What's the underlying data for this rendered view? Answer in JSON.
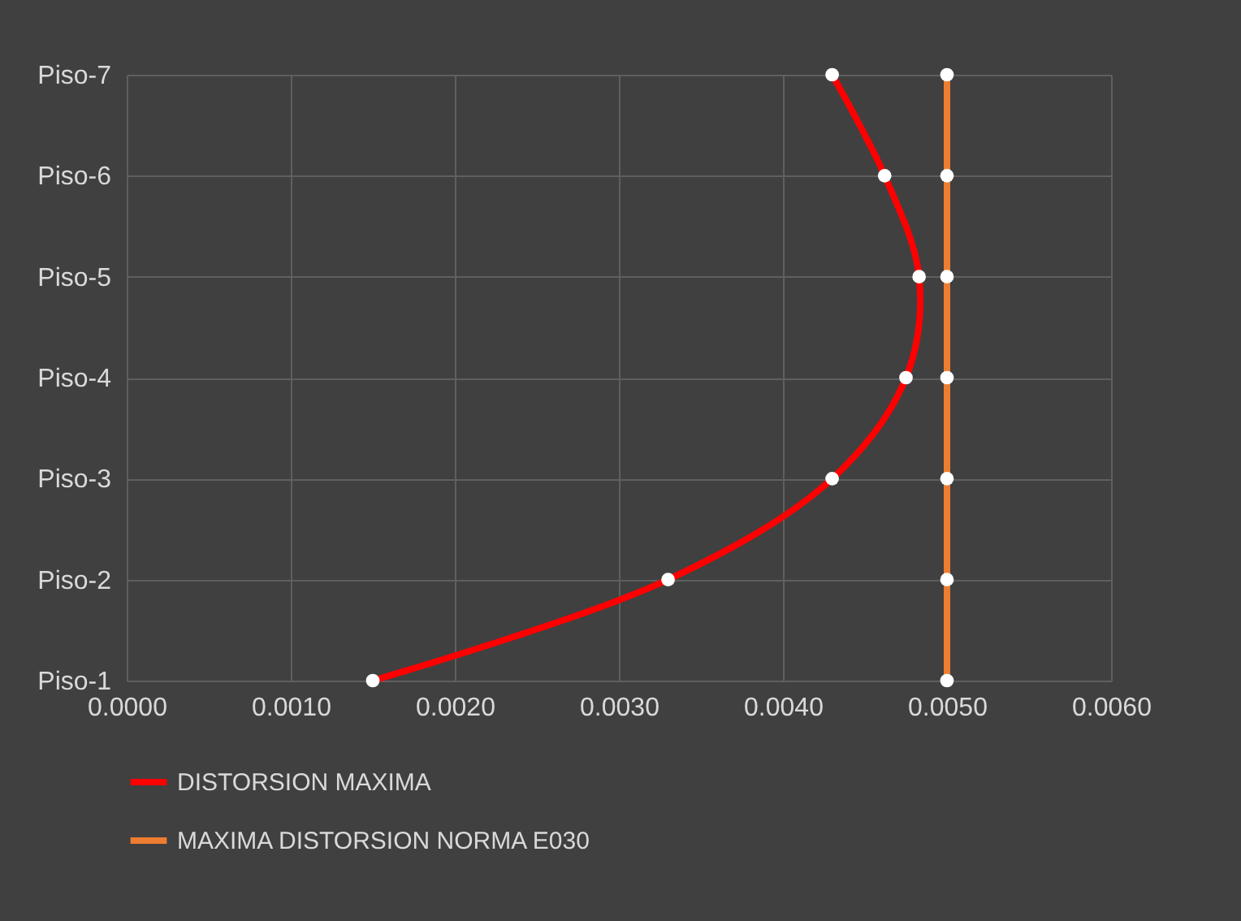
{
  "chart_data": {
    "type": "line",
    "orientation": "horizontal",
    "categories": [
      "Piso-7",
      "Piso-6",
      "Piso-5",
      "Piso-4",
      "Piso-3",
      "Piso-2",
      "Piso-1"
    ],
    "series": [
      {
        "name": "DISTORSION MAXIMA",
        "color": "#ff0000",
        "values": [
          0.0043,
          0.00462,
          0.00483,
          0.00475,
          0.0043,
          0.0033,
          0.0015
        ]
      },
      {
        "name": "MAXIMA DISTORSION NORMA E030",
        "color": "#ed7d31",
        "values": [
          0.005,
          0.005,
          0.005,
          0.005,
          0.005,
          0.005,
          0.005
        ]
      }
    ],
    "xlim": [
      0,
      0.006
    ],
    "xticks": [
      {
        "value": 0,
        "label": "0.0000"
      },
      {
        "value": 0.001,
        "label": "0.0010"
      },
      {
        "value": 0.002,
        "label": "0.0020"
      },
      {
        "value": 0.003,
        "label": "0.0030"
      },
      {
        "value": 0.004,
        "label": "0.0040"
      },
      {
        "value": 0.005,
        "label": "0.0050"
      },
      {
        "value": 0.006,
        "label": "0.0060"
      }
    ],
    "grid": true,
    "legend": "bottom",
    "marker": "circle",
    "line_style": "solid"
  }
}
